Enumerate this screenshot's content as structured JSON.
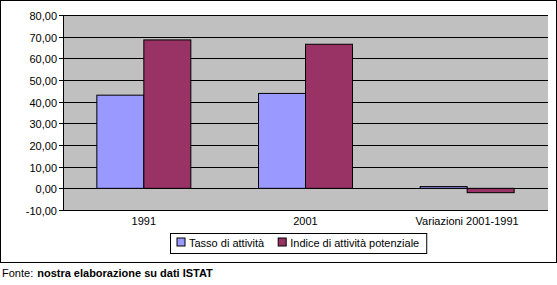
{
  "chart_data": {
    "type": "bar",
    "categories": [
      "1991",
      "2001",
      "Variazioni 2001-1991"
    ],
    "series": [
      {
        "name": "Tasso di attività",
        "color": "#9999ff",
        "values": [
          43.0,
          43.8,
          0.8
        ]
      },
      {
        "name": "Indice di attività potenziale",
        "color": "#993366",
        "values": [
          68.5,
          66.5,
          -2.0
        ]
      }
    ],
    "ylim": [
      -10,
      80
    ],
    "yticks": [
      {
        "value": -10,
        "label": "-10,00"
      },
      {
        "value": 0,
        "label": "0,00"
      },
      {
        "value": 10,
        "label": "10,00"
      },
      {
        "value": 20,
        "label": "20,00"
      },
      {
        "value": 30,
        "label": "30,00"
      },
      {
        "value": 40,
        "label": "40,00"
      },
      {
        "value": 50,
        "label": "50,00"
      },
      {
        "value": 60,
        "label": "60,00"
      },
      {
        "value": 70,
        "label": "70,00"
      },
      {
        "value": 80,
        "label": "80,00"
      }
    ],
    "grid": true,
    "legend": "bottom",
    "source": {
      "label": "Fonte:",
      "text": "nostra elaborazione su dati ISTAT"
    }
  }
}
